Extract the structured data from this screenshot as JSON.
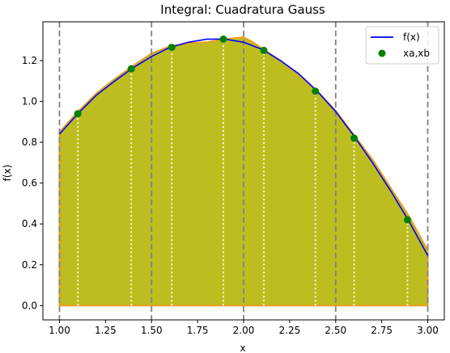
{
  "chart_data": {
    "type": "line",
    "title": "Integral: Cuadratura Gauss",
    "xlabel": "x",
    "ylabel": "f(x)",
    "xlim": [
      0.91,
      3.09
    ],
    "ylim": [
      -0.07,
      1.39
    ],
    "xticks": [
      1.0,
      1.25,
      1.5,
      1.75,
      2.0,
      2.25,
      2.5,
      2.75,
      3.0
    ],
    "yticks": [
      0.0,
      0.2,
      0.4,
      0.6,
      0.8,
      1.0,
      1.2
    ],
    "xtick_labels": [
      "1.00",
      "1.25",
      "1.50",
      "1.75",
      "2.00",
      "2.25",
      "2.50",
      "2.75",
      "3.00"
    ],
    "ytick_labels": [
      "0.0",
      "0.2",
      "0.4",
      "0.6",
      "0.8",
      "1.0",
      "1.2"
    ],
    "legend_position": "top-right",
    "grid": false,
    "series": [
      {
        "name": "f(x)",
        "kind": "line",
        "color": "#0000ff",
        "x": [
          1.0,
          1.1,
          1.2,
          1.3,
          1.4,
          1.5,
          1.6,
          1.7,
          1.8,
          1.9,
          2.0,
          2.1,
          2.2,
          2.3,
          2.4,
          2.5,
          2.6,
          2.7,
          2.8,
          2.9,
          3.0
        ],
        "y": [
          0.84,
          0.94,
          1.03,
          1.1,
          1.165,
          1.22,
          1.265,
          1.29,
          1.305,
          1.305,
          1.29,
          1.255,
          1.2,
          1.135,
          1.05,
          0.95,
          0.83,
          0.7,
          0.56,
          0.41,
          0.245
        ]
      },
      {
        "name": "xa,xb",
        "kind": "scatter",
        "color": "#008000",
        "x": [
          1.1,
          1.39,
          1.61,
          1.89,
          2.11,
          2.39,
          2.6,
          2.89
        ],
        "y": [
          0.94,
          1.16,
          1.265,
          1.305,
          1.25,
          1.05,
          0.82,
          0.42
        ]
      }
    ],
    "fills": [
      {
        "color": "#bdbd20",
        "edge_color": "#e6a020",
        "x": [
          1.0,
          1.1,
          1.2,
          1.3,
          1.4,
          1.5,
          1.6,
          1.7,
          1.8,
          1.9,
          1.95,
          2.0,
          2.05,
          2.1,
          2.2,
          2.3,
          2.4,
          2.5,
          2.6,
          2.7,
          2.8,
          2.9,
          3.0
        ],
        "y": [
          0.85,
          0.95,
          1.04,
          1.11,
          1.175,
          1.235,
          1.27,
          1.285,
          1.29,
          1.305,
          1.31,
          1.315,
          1.29,
          1.26,
          1.2,
          1.13,
          1.05,
          0.955,
          0.835,
          0.715,
          0.575,
          0.435,
          0.27
        ]
      }
    ],
    "interval_lines": {
      "color": "#808080",
      "x": [
        1.0,
        1.5,
        2.0,
        2.5,
        3.0
      ]
    },
    "node_lines": {
      "color": "#ffffff",
      "x": [
        1.1,
        1.39,
        1.61,
        1.89,
        2.11,
        2.39,
        2.6,
        2.89
      ]
    }
  }
}
